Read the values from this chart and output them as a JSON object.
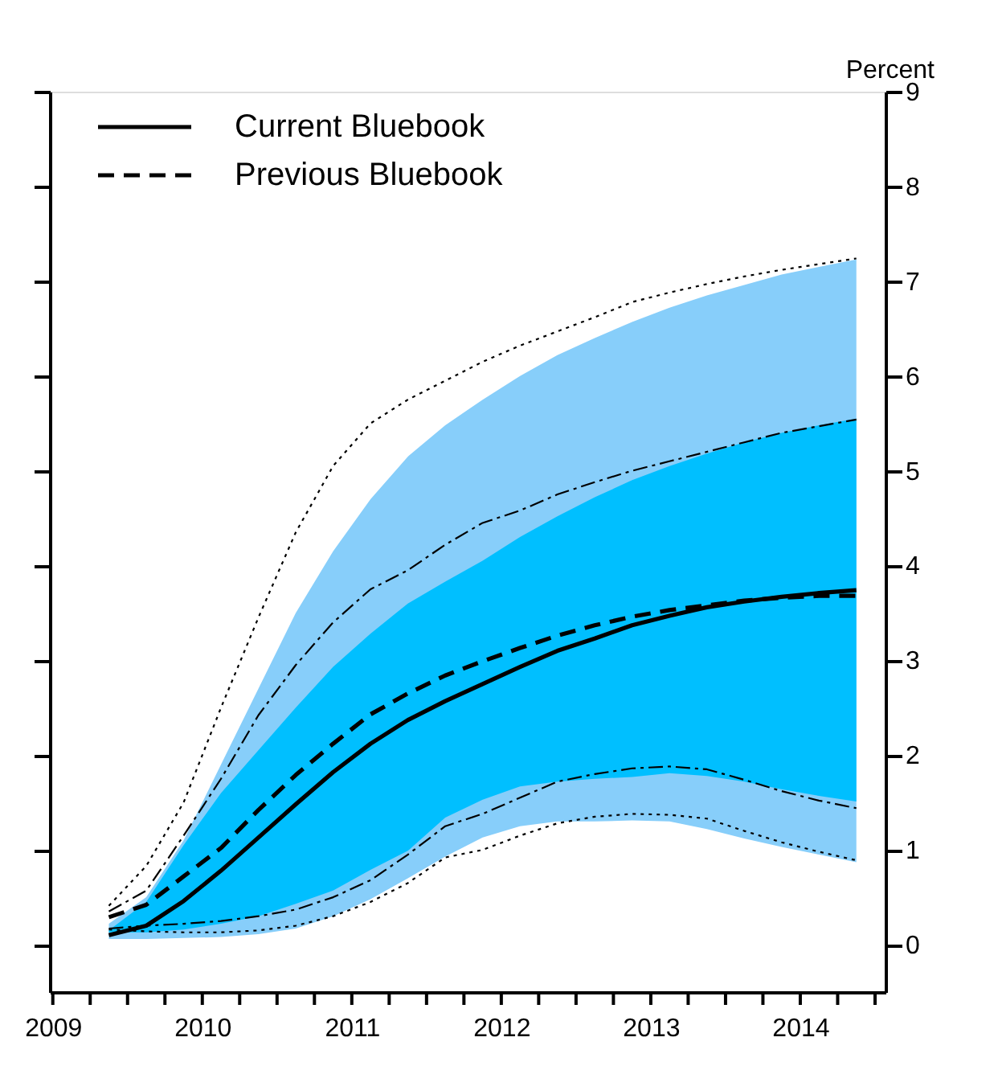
{
  "chart_data": {
    "type": "line",
    "ylabel": "Percent",
    "x": [
      2009.375,
      2009.625,
      2009.875,
      2010.125,
      2010.375,
      2010.625,
      2010.875,
      2011.125,
      2011.375,
      2011.625,
      2011.875,
      2012.125,
      2012.375,
      2012.625,
      2012.875,
      2013.125,
      2013.375,
      2013.625,
      2013.875,
      2014.125,
      2014.375
    ],
    "xlim": [
      2008.98,
      2014.57
    ],
    "xticks": [
      2009,
      {
        "value": 2009.25,
        "label": null
      },
      {
        "value": 2009.5,
        "label": null
      },
      {
        "value": 2009.75,
        "label": null
      },
      2010,
      {
        "value": 2010.25,
        "label": null
      },
      {
        "value": 2010.5,
        "label": null
      },
      {
        "value": 2010.75,
        "label": null
      },
      2011,
      {
        "value": 2011.25,
        "label": null
      },
      {
        "value": 2011.5,
        "label": null
      },
      {
        "value": 2011.75,
        "label": null
      },
      2012,
      {
        "value": 2012.25,
        "label": null
      },
      {
        "value": 2012.5,
        "label": null
      },
      {
        "value": 2012.75,
        "label": null
      },
      2013,
      {
        "value": 2013.25,
        "label": null
      },
      {
        "value": 2013.5,
        "label": null
      },
      {
        "value": 2013.75,
        "label": null
      },
      2014,
      {
        "value": 2014.25,
        "label": null
      },
      {
        "value": 2014.5,
        "label": null
      }
    ],
    "ylim": [
      -0.5,
      9
    ],
    "yticks": [
      0,
      1,
      2,
      3,
      4,
      5,
      6,
      7,
      8,
      9
    ],
    "grid": false,
    "legend": "top left",
    "series": [
      {
        "type": "area",
        "color": "#87cefa",
        "values": [
          null,
          null,
          null,
          null,
          null,
          null,
          null,
          null,
          null,
          null,
          null,
          null,
          null,
          null,
          null,
          null,
          null,
          null,
          null,
          null,
          null
        ],
        "lower": [
          0.06,
          0.06,
          0.07,
          0.08,
          0.11,
          0.17,
          0.3,
          0.48,
          0.7,
          0.93,
          1.13,
          1.25,
          1.3,
          1.3,
          1.31,
          1.3,
          1.22,
          1.12,
          1.03,
          0.95,
          0.87
        ],
        "upper": [
          0.22,
          0.5,
          1.1,
          1.9,
          2.7,
          3.5,
          4.15,
          4.7,
          5.15,
          5.48,
          5.75,
          6.0,
          6.22,
          6.4,
          6.57,
          6.72,
          6.85,
          6.96,
          7.07,
          7.15,
          7.23
        ]
      },
      {
        "type": "area",
        "color": "#00bfff",
        "values": [
          null,
          null,
          null,
          null,
          null,
          null,
          null,
          null,
          null,
          null,
          null,
          null,
          null,
          null,
          null,
          null,
          null,
          null,
          null,
          null,
          null
        ],
        "lower": [
          0.13,
          0.13,
          0.16,
          0.22,
          0.3,
          0.43,
          0.57,
          0.79,
          0.99,
          1.34,
          1.53,
          1.67,
          1.72,
          1.75,
          1.77,
          1.81,
          1.78,
          1.72,
          1.64,
          1.57,
          1.51
        ],
        "upper": [
          0.15,
          0.45,
          1.05,
          1.6,
          2.05,
          2.5,
          2.93,
          3.28,
          3.6,
          3.83,
          4.05,
          4.3,
          4.52,
          4.72,
          4.9,
          5.05,
          5.18,
          5.3,
          5.4,
          5.48,
          5.55
        ]
      },
      {
        "type": "line",
        "color": "#000000",
        "line_style": "dotted",
        "values": [
          0.41,
          0.83,
          1.5,
          2.5,
          3.45,
          4.35,
          5.05,
          5.5,
          5.75,
          5.95,
          6.15,
          6.32,
          6.47,
          6.62,
          6.78,
          6.88,
          6.97,
          7.05,
          7.12,
          7.18,
          7.24
        ]
      },
      {
        "type": "line",
        "color": "#000000",
        "line_style": "dashed",
        "values": [
          0.35,
          0.57,
          1.15,
          1.75,
          2.42,
          2.95,
          3.4,
          3.75,
          3.95,
          4.22,
          4.45,
          4.58,
          4.75,
          4.88,
          5.0,
          5.1,
          5.2,
          5.3,
          5.4,
          5.47,
          5.54
        ]
      },
      {
        "type": "line",
        "color": "#000000",
        "line_style": "dashed",
        "values": [
          0.17,
          0.2,
          0.22,
          0.25,
          0.3,
          0.37,
          0.5,
          0.68,
          0.95,
          1.25,
          1.38,
          1.55,
          1.72,
          1.8,
          1.86,
          1.88,
          1.85,
          1.74,
          1.62,
          1.52,
          1.44
        ]
      },
      {
        "type": "line",
        "color": "#000000",
        "line_style": "dotted",
        "values": [
          0.16,
          0.14,
          0.13,
          0.13,
          0.15,
          0.2,
          0.3,
          0.45,
          0.65,
          0.92,
          1.0,
          1.15,
          1.28,
          1.35,
          1.38,
          1.37,
          1.33,
          1.2,
          1.08,
          0.98,
          0.89
        ]
      },
      {
        "type": "line",
        "name": "Current Bluebook",
        "color": "#000000",
        "line_style": "solid",
        "values": [
          0.1,
          0.2,
          0.46,
          0.78,
          1.13,
          1.48,
          1.82,
          2.12,
          2.37,
          2.57,
          2.75,
          2.93,
          3.1,
          3.23,
          3.37,
          3.47,
          3.56,
          3.62,
          3.67,
          3.71,
          3.74
        ]
      },
      {
        "type": "line",
        "name": "Previous Bluebook",
        "color": "#000000",
        "line_style": "dashed",
        "values": [
          0.29,
          0.42,
          0.72,
          1.02,
          1.42,
          1.79,
          2.12,
          2.43,
          2.65,
          2.84,
          2.99,
          3.13,
          3.26,
          3.37,
          3.46,
          3.53,
          3.58,
          3.63,
          3.66,
          3.68,
          3.68
        ]
      }
    ]
  }
}
